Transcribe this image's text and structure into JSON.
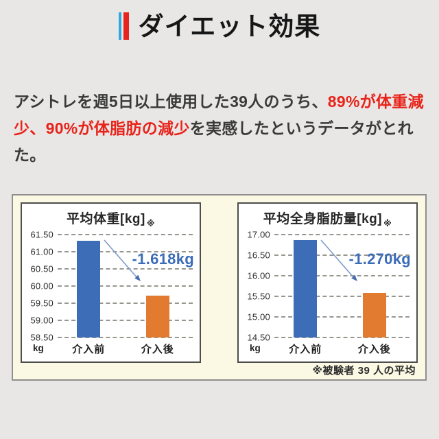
{
  "page": {
    "background": "#e8e7e6"
  },
  "header": {
    "title": "ダイエット効果",
    "marker_blue_color": "#2fa9dd",
    "marker_red_color": "#e6251e"
  },
  "paragraph": {
    "text_color": "#3a3a3a",
    "emphasis_color": "#e8231a",
    "segments": [
      {
        "text": "アシトレを週5日以上使用した39人のうち、",
        "emphasis": false
      },
      {
        "text": "89%が体重減少、90%が体脂肪の減少",
        "emphasis": true
      },
      {
        "text": "を実感したというデータがとれた。",
        "emphasis": false
      }
    ]
  },
  "panel": {
    "background": "#fbf8e3",
    "footnote": "※被験者 39 人の平均"
  },
  "chart_data": [
    {
      "type": "bar",
      "title": "平均体重[kg]",
      "title_note": "※",
      "unit_label": "kg",
      "categories": [
        "介入前",
        "介入後"
      ],
      "values": [
        61.33,
        59.72
      ],
      "series_colors": [
        "#3d6db7",
        "#e27b2f"
      ],
      "diff_label": "-1.618kg",
      "diff_color": "#3a6cb8",
      "ylim": [
        58.5,
        61.5
      ],
      "ytick_labels": [
        "61.50",
        "61.00",
        "60.50",
        "60.00",
        "59.50",
        "59.00",
        "58.50"
      ],
      "grid": "dashed",
      "legend": "none"
    },
    {
      "type": "bar",
      "title": "平均全身脂肪量[kg]",
      "title_note": "※",
      "unit_label": "kg",
      "categories": [
        "介入前",
        "介入後"
      ],
      "values": [
        16.86,
        15.59
      ],
      "series_colors": [
        "#3d6db7",
        "#e27b2f"
      ],
      "diff_label": "-1.270kg",
      "diff_color": "#3a6cb8",
      "ylim": [
        14.5,
        17.0
      ],
      "ytick_labels": [
        "17.00",
        "16.50",
        "16.00",
        "15.50",
        "15.00",
        "14.50"
      ],
      "grid": "dashed",
      "legend": "none"
    }
  ]
}
